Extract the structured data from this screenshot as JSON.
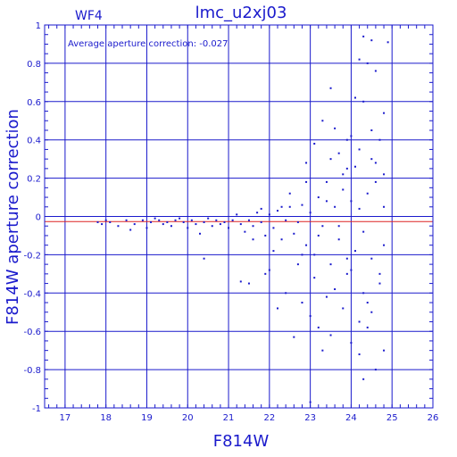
{
  "chart_data": {
    "type": "scatter",
    "title": "lmc_u2xj03",
    "panel_label": "WF4",
    "annotation": "Average aperture correction: -0.027",
    "xlabel": "F814W",
    "ylabel": "F814W aperture correction",
    "xlim": [
      16.5,
      26
    ],
    "ylim": [
      -1,
      1
    ],
    "x_ticks": [
      "17",
      "18",
      "19",
      "20",
      "21",
      "22",
      "23",
      "24",
      "25",
      "26"
    ],
    "y_ticks": [
      "1",
      "0.8",
      "0.6",
      "0.4",
      "0.2",
      "0",
      "-0.2",
      "-0.4",
      "-0.6",
      "-0.8",
      "-1"
    ],
    "x_tick_values": [
      17,
      18,
      19,
      20,
      21,
      22,
      23,
      24,
      25,
      26
    ],
    "y_tick_values": [
      1,
      0.8,
      0.6,
      0.4,
      0.2,
      0,
      -0.2,
      -0.4,
      -0.6,
      -0.8,
      -1
    ],
    "grid": true,
    "reference_lines": [
      {
        "value": 0,
        "color": "#1a1acc"
      },
      {
        "value": -0.027,
        "color": "#dd2222"
      }
    ],
    "colors": {
      "axis": "#1a1acc",
      "points": "#1a1acc",
      "average_line": "#dd2222"
    },
    "series": [
      {
        "points": [
          [
            17.8,
            -0.03
          ],
          [
            17.9,
            -0.04
          ],
          [
            18.0,
            -0.02
          ],
          [
            18.1,
            -0.03
          ],
          [
            18.3,
            -0.05
          ],
          [
            18.5,
            -0.02
          ],
          [
            18.6,
            -0.07
          ],
          [
            18.7,
            -0.04
          ],
          [
            18.9,
            -0.02
          ],
          [
            19.0,
            -0.06
          ],
          [
            19.1,
            -0.03
          ],
          [
            19.2,
            -0.01
          ],
          [
            19.3,
            -0.02
          ],
          [
            19.4,
            -0.04
          ],
          [
            19.5,
            -0.03
          ],
          [
            19.6,
            -0.05
          ],
          [
            19.7,
            -0.02
          ],
          [
            19.8,
            -0.01
          ],
          [
            19.9,
            -0.03
          ],
          [
            20.0,
            -0.06
          ],
          [
            20.1,
            -0.02
          ],
          [
            20.2,
            -0.04
          ],
          [
            20.3,
            -0.09
          ],
          [
            20.4,
            -0.03
          ],
          [
            20.5,
            -0.01
          ],
          [
            20.6,
            -0.05
          ],
          [
            20.7,
            -0.02
          ],
          [
            20.8,
            -0.04
          ],
          [
            20.9,
            -0.03
          ],
          [
            21.0,
            -0.06
          ],
          [
            21.1,
            -0.02
          ],
          [
            21.2,
            0.01
          ],
          [
            21.3,
            -0.04
          ],
          [
            21.4,
            -0.08
          ],
          [
            21.5,
            -0.02
          ],
          [
            21.6,
            -0.05
          ],
          [
            21.7,
            0.02
          ],
          [
            21.8,
            -0.03
          ],
          [
            21.9,
            -0.1
          ],
          [
            22.0,
            0.01
          ],
          [
            22.1,
            -0.06
          ],
          [
            22.2,
            0.03
          ],
          [
            22.3,
            -0.12
          ],
          [
            22.4,
            -0.02
          ],
          [
            22.5,
            0.05
          ],
          [
            22.6,
            -0.09
          ],
          [
            22.7,
            -0.03
          ],
          [
            22.8,
            0.06
          ],
          [
            22.9,
            -0.15
          ],
          [
            23.0,
            0.02
          ],
          [
            23.1,
            -0.2
          ],
          [
            23.2,
            0.1
          ],
          [
            23.3,
            -0.05
          ],
          [
            23.4,
            0.18
          ],
          [
            23.5,
            -0.25
          ],
          [
            23.6,
            0.05
          ],
          [
            23.7,
            -0.12
          ],
          [
            23.8,
            0.22
          ],
          [
            23.9,
            -0.3
          ],
          [
            24.0,
            0.08
          ],
          [
            24.1,
            -0.18
          ],
          [
            24.2,
            0.35
          ],
          [
            24.3,
            -0.4
          ],
          [
            24.4,
            0.12
          ],
          [
            24.5,
            -0.22
          ],
          [
            24.6,
            0.28
          ],
          [
            24.7,
            -0.35
          ],
          [
            24.8,
            0.05
          ],
          [
            24.3,
            0.94
          ],
          [
            24.5,
            0.92
          ],
          [
            24.9,
            0.91
          ],
          [
            24.2,
            0.82
          ],
          [
            24.4,
            0.8
          ],
          [
            24.6,
            0.76
          ],
          [
            23.5,
            0.67
          ],
          [
            24.1,
            0.62
          ],
          [
            24.3,
            0.6
          ],
          [
            24.8,
            0.54
          ],
          [
            23.3,
            0.5
          ],
          [
            23.6,
            0.46
          ],
          [
            24.0,
            0.42
          ],
          [
            24.7,
            0.4
          ],
          [
            23.1,
            0.38
          ],
          [
            23.7,
            0.33
          ],
          [
            24.5,
            0.3
          ],
          [
            22.9,
            0.28
          ],
          [
            23.9,
            0.25
          ],
          [
            24.8,
            0.22
          ],
          [
            21.5,
            -0.35
          ],
          [
            22.0,
            -0.28
          ],
          [
            22.4,
            -0.4
          ],
          [
            22.8,
            -0.45
          ],
          [
            23.0,
            -0.52
          ],
          [
            23.2,
            -0.58
          ],
          [
            23.5,
            -0.62
          ],
          [
            23.8,
            -0.48
          ],
          [
            24.0,
            -0.66
          ],
          [
            24.2,
            -0.72
          ],
          [
            24.4,
            -0.58
          ],
          [
            24.6,
            -0.8
          ],
          [
            24.8,
            -0.7
          ],
          [
            23.0,
            -0.97
          ],
          [
            24.3,
            -0.85
          ],
          [
            24.5,
            -0.5
          ],
          [
            22.6,
            -0.63
          ],
          [
            23.3,
            -0.7
          ],
          [
            22.2,
            -0.48
          ],
          [
            21.9,
            -0.3
          ],
          [
            20.4,
            -0.22
          ],
          [
            21.3,
            -0.34
          ],
          [
            22.5,
            0.12
          ],
          [
            22.7,
            -0.25
          ],
          [
            22.9,
            0.18
          ],
          [
            23.1,
            -0.32
          ],
          [
            23.4,
            0.08
          ],
          [
            23.6,
            -0.38
          ],
          [
            23.8,
            0.14
          ],
          [
            24.0,
            -0.28
          ],
          [
            24.2,
            0.04
          ],
          [
            24.4,
            -0.45
          ],
          [
            24.6,
            0.18
          ],
          [
            24.8,
            -0.15
          ],
          [
            23.2,
            -0.1
          ],
          [
            23.5,
            0.3
          ],
          [
            23.9,
            -0.22
          ],
          [
            24.1,
            0.26
          ],
          [
            24.3,
            -0.08
          ],
          [
            24.7,
            -0.3
          ],
          [
            22.3,
            0.05
          ],
          [
            22.1,
            -0.18
          ],
          [
            21.8,
            0.04
          ],
          [
            21.6,
            -0.12
          ],
          [
            22.8,
            -0.2
          ],
          [
            23.7,
            -0.05
          ],
          [
            24.5,
            0.45
          ],
          [
            23.9,
            0.4
          ],
          [
            24.2,
            -0.55
          ],
          [
            23.4,
            -0.42
          ]
        ]
      }
    ]
  }
}
